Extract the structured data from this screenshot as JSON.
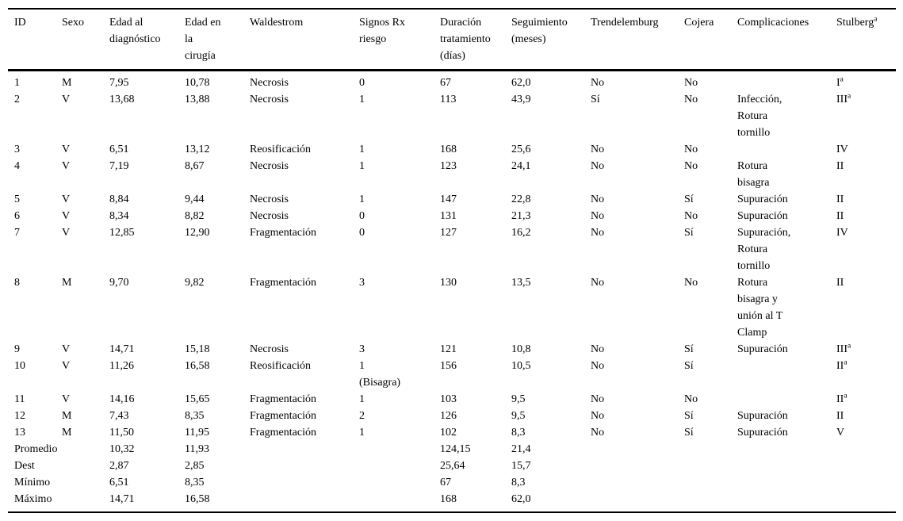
{
  "table": {
    "columns": [
      {
        "label": "ID"
      },
      {
        "label": "Sexo"
      },
      {
        "label": "Edad al\ndiagnóstico"
      },
      {
        "label": "Edad en\nla\ncirugía"
      },
      {
        "label": "Waldestrom"
      },
      {
        "label": "Signos Rx\nriesgo"
      },
      {
        "label": "Duración\ntratamiento\n(días)"
      },
      {
        "label": "Seguimiento\n(meses)"
      },
      {
        "label": "Trendelemburg"
      },
      {
        "label": "Cojera"
      },
      {
        "label": "Complicaciones"
      },
      {
        "label": "Stulberg",
        "sup": "a"
      }
    ],
    "rows": [
      [
        "1",
        "M",
        "7,95",
        "10,78",
        "Necrosis",
        "0",
        "67",
        "62,0",
        "No",
        "No",
        "",
        {
          "text": "I",
          "sup": "a"
        }
      ],
      [
        "2",
        "V",
        "13,68",
        "13,88",
        "Necrosis",
        "1",
        "113",
        "43,9",
        "Sí",
        "No",
        "Infección,\nRotura\ntornillo",
        {
          "text": "III",
          "sup": "a"
        }
      ],
      [
        "3",
        "V",
        "6,51",
        "13,12",
        "Reosificación",
        "1",
        "168",
        "25,6",
        "No",
        "No",
        "",
        {
          "text": "IV"
        }
      ],
      [
        "4",
        "V",
        "7,19",
        "8,67",
        "Necrosis",
        "1",
        "123",
        "24,1",
        "No",
        "No",
        "Rotura\nbisagra",
        {
          "text": "II"
        }
      ],
      [
        "5",
        "V",
        "8,84",
        "9,44",
        "Necrosis",
        "1",
        "147",
        "22,8",
        "No",
        "Sí",
        "Supuración",
        {
          "text": "II"
        }
      ],
      [
        "6",
        "V",
        "8,34",
        "8,82",
        "Necrosis",
        "0",
        "131",
        "21,3",
        "No",
        "No",
        "Supuración",
        {
          "text": "II"
        }
      ],
      [
        "7",
        "V",
        "12,85",
        "12,90",
        "Fragmentación",
        "0",
        "127",
        "16,2",
        "No",
        "Sí",
        "Supuración,\nRotura\ntornillo",
        {
          "text": "IV"
        }
      ],
      [
        "8",
        "M",
        "9,70",
        "9,82",
        "Fragmentación",
        "3",
        "130",
        "13,5",
        "No",
        "No",
        "Rotura\nbisagra y\nunión al T\nClamp",
        {
          "text": "II"
        }
      ],
      [
        "9",
        "V",
        "14,71",
        "15,18",
        "Necrosis",
        "3",
        "121",
        "10,8",
        "No",
        "Sí",
        "Supuración",
        {
          "text": "III",
          "sup": "a"
        }
      ],
      [
        "10",
        "V",
        "11,26",
        "16,58",
        "Reosificación",
        "1\n(Bisagra)",
        "156",
        "10,5",
        "No",
        "Sí",
        "",
        {
          "text": "II",
          "sup": "a"
        }
      ],
      [
        "11",
        "V",
        "14,16",
        "15,65",
        "Fragmentación",
        "1",
        "103",
        "9,5",
        "No",
        "No",
        "",
        {
          "text": "II",
          "sup": "a"
        }
      ],
      [
        "12",
        "M",
        "7,43",
        "8,35",
        "Fragmentación",
        "2",
        "126",
        "9,5",
        "No",
        "Sí",
        "Supuración",
        {
          "text": "II"
        }
      ],
      [
        "13",
        "M",
        "11,50",
        "11,95",
        "Fragmentación",
        "1",
        "102",
        "8,3",
        "No",
        "Sí",
        "Supuración",
        {
          "text": "V"
        }
      ],
      [
        "Promedio",
        "",
        "10,32",
        "11,93",
        "",
        "",
        "124,15",
        "21,4",
        "",
        "",
        "",
        ""
      ],
      [
        "Dest",
        "",
        "2,87",
        "2,85",
        "",
        "",
        "25,64",
        "15,7",
        "",
        "",
        "",
        ""
      ],
      [
        "Mínimo",
        "",
        "6,51",
        "8,35",
        "",
        "",
        "67",
        "8,3",
        "",
        "",
        "",
        ""
      ],
      [
        "Máximo",
        "",
        "14,71",
        "16,58",
        "",
        "",
        "168",
        "62,0",
        "",
        "",
        "",
        ""
      ]
    ]
  }
}
